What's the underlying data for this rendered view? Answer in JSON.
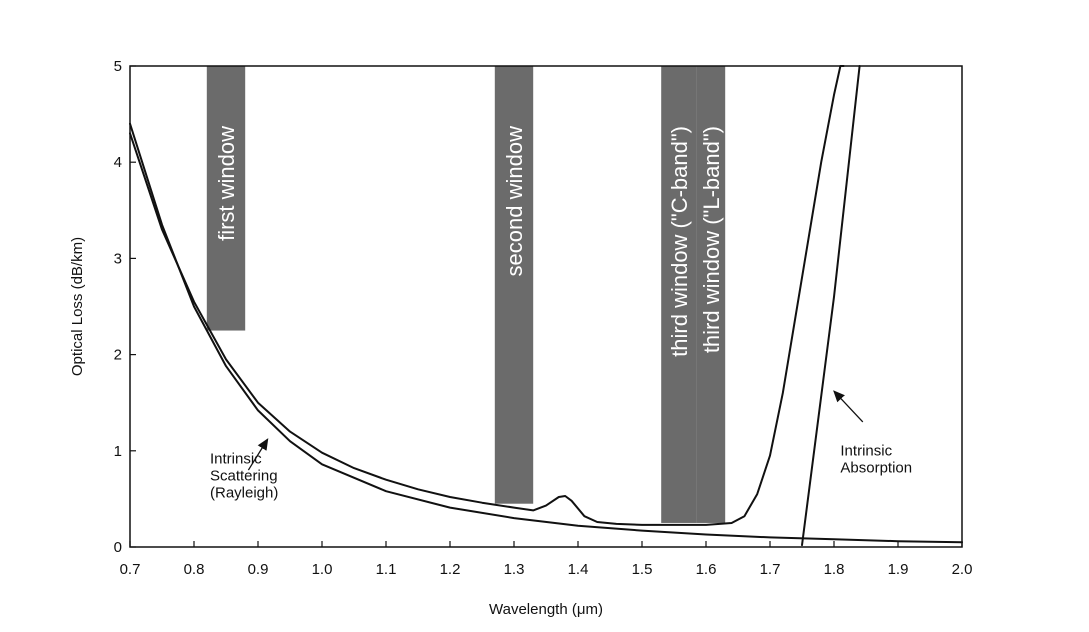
{
  "chart_data": {
    "type": "line",
    "xlabel": "Wavelength (μm)",
    "ylabel": "Optical Loss (dB/km)",
    "xlim": [
      0.7,
      2.0
    ],
    "ylim": [
      0,
      5
    ],
    "x_ticks": [
      0.7,
      0.8,
      0.9,
      1.0,
      1.1,
      1.2,
      1.3,
      1.4,
      1.5,
      1.6,
      1.7,
      1.8,
      1.9,
      2.0
    ],
    "x_tick_labels": [
      "0.7",
      "0.8",
      "0.9",
      "1.0",
      "1.1",
      "1.2",
      "1.3",
      "1.4",
      "1.5",
      "1.6",
      "1.7",
      "1.8",
      "1.9",
      "2.0"
    ],
    "y_ticks": [
      0,
      1,
      2,
      3,
      4,
      5
    ],
    "y_tick_labels": [
      "0",
      "1",
      "2",
      "3",
      "4",
      "5"
    ],
    "grid": false,
    "series": [
      {
        "x": [
          0.7,
          0.75,
          0.8,
          0.85,
          0.9,
          0.95,
          1.0,
          1.05,
          1.1,
          1.15,
          1.2,
          1.25,
          1.3,
          1.33,
          1.35,
          1.37,
          1.38,
          1.39,
          1.41,
          1.43,
          1.46,
          1.5,
          1.55,
          1.6,
          1.64,
          1.66,
          1.68,
          1.7,
          1.72,
          1.74,
          1.76,
          1.78,
          1.8,
          1.81,
          1.815
        ],
        "y": [
          4.3,
          3.3,
          2.55,
          1.95,
          1.5,
          1.2,
          0.98,
          0.82,
          0.7,
          0.6,
          0.52,
          0.46,
          0.41,
          0.38,
          0.43,
          0.52,
          0.53,
          0.48,
          0.32,
          0.26,
          0.24,
          0.23,
          0.23,
          0.23,
          0.25,
          0.32,
          0.55,
          0.95,
          1.6,
          2.4,
          3.2,
          4.0,
          4.7,
          5.0,
          5.0
        ]
      },
      {
        "x": [
          0.7,
          0.75,
          0.8,
          0.85,
          0.9,
          0.95,
          1.0,
          1.1,
          1.2,
          1.3,
          1.4,
          1.5,
          1.6,
          1.7,
          1.8,
          1.9,
          2.0
        ],
        "y": [
          4.4,
          3.35,
          2.5,
          1.88,
          1.42,
          1.1,
          0.86,
          0.58,
          0.41,
          0.3,
          0.22,
          0.17,
          0.13,
          0.1,
          0.08,
          0.06,
          0.05
        ]
      },
      {
        "x": [
          1.75,
          1.8,
          1.84
        ],
        "y": [
          0.02,
          2.6,
          5.0
        ]
      }
    ],
    "bands": [
      {
        "label": "first window",
        "x_range": [
          0.82,
          0.88
        ],
        "y_range": [
          2.25,
          5.0
        ]
      },
      {
        "label": "second window",
        "x_range": [
          1.27,
          1.33
        ],
        "y_range": [
          0.45,
          5.0
        ]
      },
      {
        "label": "third window (\"C-band\")",
        "x_range": [
          1.53,
          1.585
        ],
        "y_range": [
          0.25,
          5.0
        ]
      },
      {
        "label": "third window (\"L-band\")",
        "x_range": [
          1.585,
          1.63
        ],
        "y_range": [
          0.25,
          5.0
        ]
      }
    ],
    "annotations": [
      {
        "lines": [
          "Intrinsic",
          "Scattering",
          "(Rayleigh)"
        ],
        "anchor_x": 0.825,
        "anchor_y": 0.87,
        "arrow_from": [
          0.885,
          0.8
        ],
        "arrow_to": [
          0.915,
          1.12
        ]
      },
      {
        "lines": [
          "Intrinsic",
          "Absorption"
        ],
        "anchor_x": 1.81,
        "anchor_y": 0.95,
        "arrow_from": [
          1.845,
          1.3
        ],
        "arrow_to": [
          1.8,
          1.62
        ]
      }
    ]
  }
}
